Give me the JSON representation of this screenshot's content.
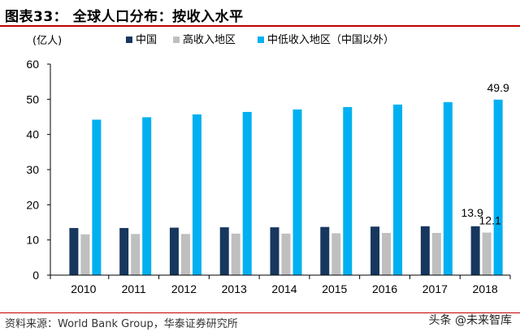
{
  "title": "图表33： 全球人口分布：按收入水平",
  "source": "资料来源：World Bank Group，华泰证券研究所",
  "watermark": "头条 @未来智库",
  "chart_data": {
    "type": "bar",
    "unit_label": "(亿人)",
    "categories": [
      "2010",
      "2011",
      "2012",
      "2013",
      "2014",
      "2015",
      "2016",
      "2017",
      "2018"
    ],
    "series": [
      {
        "name": "中国",
        "color": "#17375e",
        "values": [
          13.4,
          13.4,
          13.5,
          13.6,
          13.6,
          13.7,
          13.8,
          13.9,
          13.9
        ]
      },
      {
        "name": "高收入地区",
        "color": "#bfbfbf",
        "values": [
          11.6,
          11.7,
          11.7,
          11.8,
          11.8,
          11.9,
          12.0,
          12.0,
          12.1
        ]
      },
      {
        "name": "中低收入地区（中国以外）",
        "color": "#00b0f0",
        "values": [
          44.2,
          44.9,
          45.7,
          46.4,
          47.1,
          47.8,
          48.5,
          49.2,
          49.9
        ]
      }
    ],
    "data_labels": [
      {
        "series": 0,
        "index": 8,
        "text": "13.9"
      },
      {
        "series": 1,
        "index": 8,
        "text": "12.1"
      },
      {
        "series": 2,
        "index": 8,
        "text": "49.9"
      }
    ],
    "ylim": [
      0,
      60
    ],
    "yticks": [
      0,
      10,
      20,
      30,
      40,
      50,
      60
    ],
    "legend_position": "top",
    "grid": false
  }
}
